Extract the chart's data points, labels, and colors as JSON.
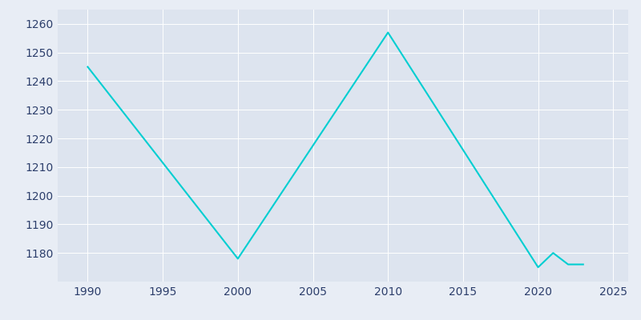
{
  "years": [
    1990,
    2000,
    2010,
    2020,
    2021,
    2022,
    2023
  ],
  "population": [
    1245,
    1178,
    1257,
    1175,
    1180,
    1176,
    1176
  ],
  "line_color": "#00CED1",
  "bg_color": "#E8EDF5",
  "plot_bg_color": "#DDE4EF",
  "xlim": [
    1988,
    2026
  ],
  "ylim": [
    1170,
    1265
  ],
  "yticks": [
    1180,
    1190,
    1200,
    1210,
    1220,
    1230,
    1240,
    1250,
    1260
  ],
  "xticks": [
    1990,
    1995,
    2000,
    2005,
    2010,
    2015,
    2020,
    2025
  ],
  "line_width": 1.5,
  "tick_label_color": "#2c3e6b",
  "grid_color": "#FFFFFF",
  "grid_linewidth": 0.7
}
